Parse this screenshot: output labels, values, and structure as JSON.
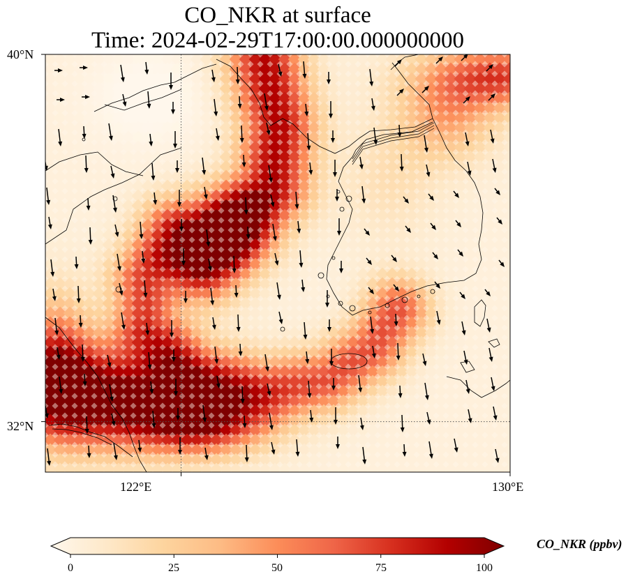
{
  "title": {
    "line1": "CO_NKR at surface",
    "line2": "Time: 2024-02-29T17:00:00.000000000"
  },
  "map": {
    "lon_range": [
      118.7,
      130.0
    ],
    "lat_range": [
      30.9,
      40.0
    ],
    "lon_ticks": [
      {
        "value": 122,
        "label": "122°E"
      },
      {
        "value": 130,
        "label": "130°E"
      }
    ],
    "lat_ticks": [
      {
        "value": 40,
        "label": "40°N"
      },
      {
        "value": 32,
        "label": "32°N"
      }
    ],
    "gridlines": "dotted",
    "wind_vectors": "shown",
    "coastlines": "shown"
  },
  "colorbar": {
    "title": "CO_NKR (ppbv)",
    "ticks": [
      {
        "value": 0,
        "label": "0"
      },
      {
        "value": 25,
        "label": "25"
      },
      {
        "value": 50,
        "label": "50"
      },
      {
        "value": 75,
        "label": "75"
      },
      {
        "value": 100,
        "label": "100"
      }
    ],
    "min": 0,
    "max": 100,
    "extend": "both",
    "colormap": [
      "#fff7ec",
      "#fee8c8",
      "#fdd49e",
      "#fdbb84",
      "#fc8d59",
      "#ef6548",
      "#d7301f",
      "#b30000",
      "#7f0000"
    ]
  }
}
